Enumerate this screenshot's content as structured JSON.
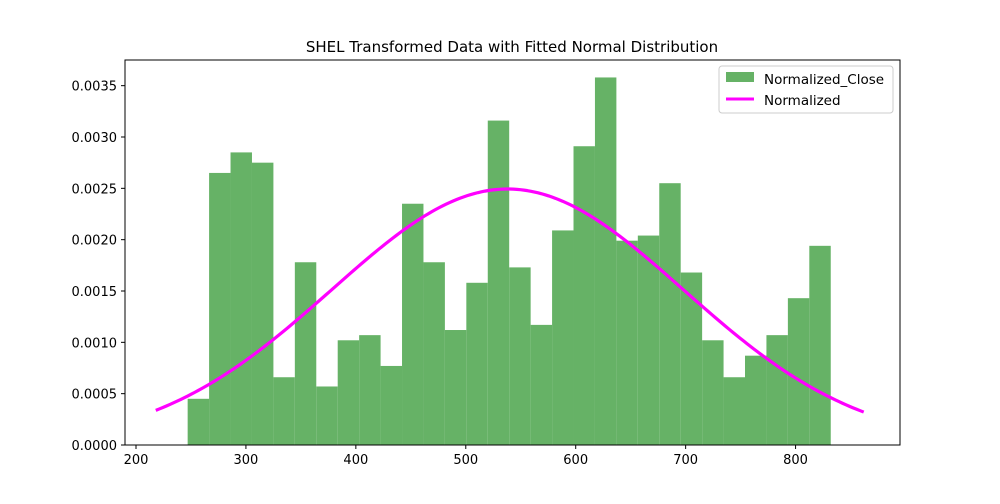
{
  "chart_data": {
    "type": "bar",
    "title": "SHEL Transformed Data with Fitted Normal Distribution",
    "xlabel": "",
    "ylabel": "",
    "xlim": [
      190,
      895
    ],
    "ylim": [
      0,
      0.00375
    ],
    "x_ticks": [
      200,
      300,
      400,
      500,
      600,
      700,
      800
    ],
    "x_tick_labels": [
      "200",
      "300",
      "400",
      "500",
      "600",
      "700",
      "800"
    ],
    "y_ticks": [
      0,
      0.0005,
      0.001,
      0.0015,
      0.002,
      0.0025,
      0.003,
      0.0035
    ],
    "y_tick_labels": [
      "0.0000",
      "0.0005",
      "0.0010",
      "0.0015",
      "0.0020",
      "0.0025",
      "0.0030",
      "0.0035"
    ],
    "grid": false,
    "legend_position": "top-right",
    "histogram": {
      "name": "Normalized_Close",
      "color": "#66b266",
      "bin_edges": [
        247,
        266.5,
        286,
        305.5,
        325,
        344.5,
        364,
        383.5,
        403,
        422.5,
        442,
        461.5,
        481,
        500.5,
        520,
        539.5,
        559,
        578.5,
        598,
        617.5,
        637,
        656.5,
        676,
        695.5,
        715,
        734.5,
        754,
        773.5,
        793,
        812.5,
        832
      ],
      "density": [
        0.00045,
        0.00265,
        0.00285,
        0.00275,
        0.00066,
        0.00178,
        0.00057,
        0.00102,
        0.00107,
        0.00077,
        0.00235,
        0.00178,
        0.00112,
        0.00158,
        0.00316,
        0.00173,
        0.00117,
        0.00209,
        0.00291,
        0.00358,
        0.00199,
        0.00204,
        0.00255,
        0.00168,
        0.00102,
        0.00066,
        0.00087,
        0.00107,
        0.00143,
        0.00194
      ]
    },
    "fit": {
      "name": "Normalized",
      "color": "#ff00ff",
      "mean": 538,
      "std": 160,
      "x_range": [
        218,
        862
      ]
    },
    "legend": {
      "items": [
        "Normalized_Close",
        "Normalized"
      ]
    }
  }
}
